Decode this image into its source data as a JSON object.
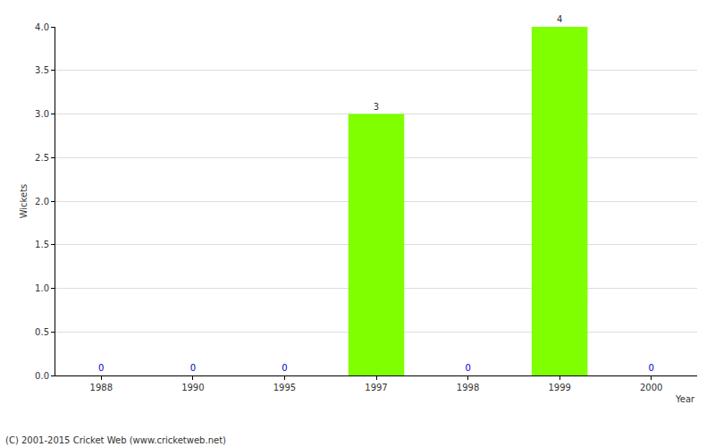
{
  "chart_data": {
    "type": "bar",
    "categories": [
      "1988",
      "1990",
      "1995",
      "1997",
      "1998",
      "1999",
      "2000"
    ],
    "values": [
      0,
      0,
      0,
      3,
      0,
      4,
      0
    ],
    "color": "#7fff00",
    "xlabel": "Year",
    "ylabel": "Wickets",
    "ylim": [
      0,
      4
    ],
    "yticks": [
      {
        "value": 0,
        "label": "0.0"
      },
      {
        "value": 0.5,
        "label": "0.5"
      },
      {
        "value": 1,
        "label": "1.0"
      },
      {
        "value": 1.5,
        "label": "1.5"
      },
      {
        "value": 2,
        "label": "2.0"
      },
      {
        "value": 2.5,
        "label": "2.5"
      },
      {
        "value": 3,
        "label": "3.0"
      },
      {
        "value": 3.5,
        "label": "3.5"
      },
      {
        "value": 4,
        "label": "4.0"
      }
    ],
    "grid": true,
    "data_labels": true,
    "annotations": [
      "(C) 2001-2015 Cricket Web (www.cricketweb.net)"
    ]
  }
}
